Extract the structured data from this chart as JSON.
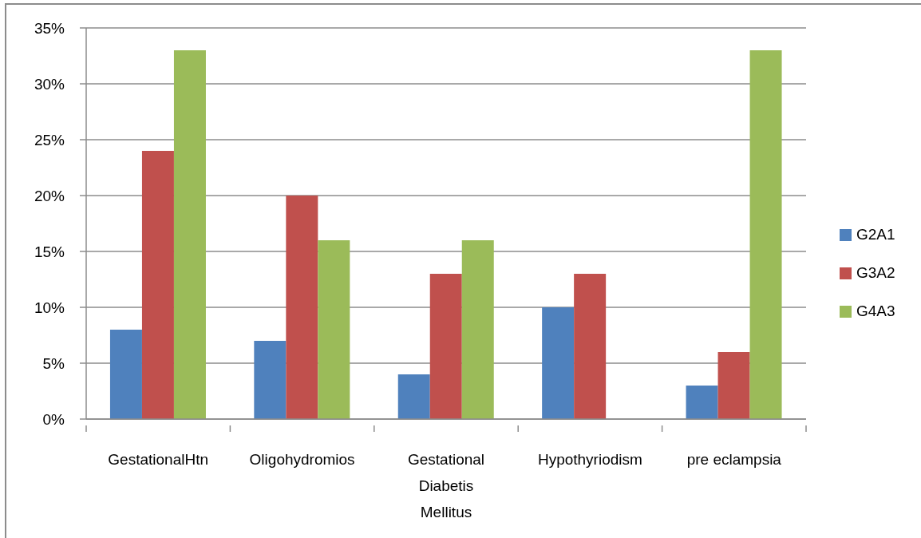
{
  "chart_data": {
    "type": "bar",
    "categories": [
      "GestationalHtn",
      "Oligohydromios",
      "Gestational Diabetis Mellitus",
      "Hypothyriodism",
      "pre eclampsia"
    ],
    "series": [
      {
        "name": "G2A1",
        "color": "#4f81bd",
        "values": [
          8,
          7,
          4,
          10,
          3
        ]
      },
      {
        "name": "G3A2",
        "color": "#c0504d",
        "values": [
          24,
          20,
          13,
          13,
          6
        ]
      },
      {
        "name": "G4A3",
        "color": "#9bbb59",
        "values": [
          33,
          16,
          16,
          null,
          33
        ]
      }
    ],
    "ylim": [
      0,
      35
    ],
    "yticks": [
      {
        "value": 0,
        "label": "0%"
      },
      {
        "value": 5,
        "label": "5%"
      },
      {
        "value": 10,
        "label": "10%"
      },
      {
        "value": 15,
        "label": "15%"
      },
      {
        "value": 20,
        "label": "20%"
      },
      {
        "value": 25,
        "label": "25%"
      },
      {
        "value": 30,
        "label": "30%"
      },
      {
        "value": 35,
        "label": "35%"
      }
    ],
    "grid": "y",
    "legend": "right"
  }
}
